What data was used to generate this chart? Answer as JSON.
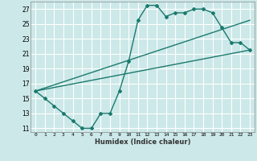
{
  "xlabel": "Humidex (Indice chaleur)",
  "bg_color": "#cce8e8",
  "grid_color": "#ffffff",
  "line_color": "#1a7a6e",
  "xlim": [
    -0.5,
    23.5
  ],
  "ylim": [
    10.5,
    28
  ],
  "xticks": [
    0,
    1,
    2,
    3,
    4,
    5,
    6,
    7,
    8,
    9,
    10,
    11,
    12,
    13,
    14,
    15,
    16,
    17,
    18,
    19,
    20,
    21,
    22,
    23
  ],
  "yticks": [
    11,
    13,
    15,
    17,
    19,
    21,
    23,
    25,
    27
  ],
  "line1": {
    "x": [
      0,
      1,
      2,
      3,
      4,
      5,
      6,
      7,
      8,
      9,
      10,
      11,
      12,
      13,
      14,
      15,
      16,
      17,
      18,
      19,
      20,
      21,
      22,
      23
    ],
    "y": [
      16,
      15,
      14,
      13,
      12,
      11,
      11,
      13,
      13,
      16,
      20,
      25.5,
      27.5,
      27.5,
      26,
      26.5,
      26.5,
      27,
      27,
      26.5,
      24.5,
      22.5,
      22.5,
      21.5
    ]
  },
  "line2": {
    "x": [
      0,
      23
    ],
    "y": [
      16,
      21.5
    ]
  },
  "line3": {
    "x": [
      0,
      23
    ],
    "y": [
      16,
      25.5
    ]
  }
}
